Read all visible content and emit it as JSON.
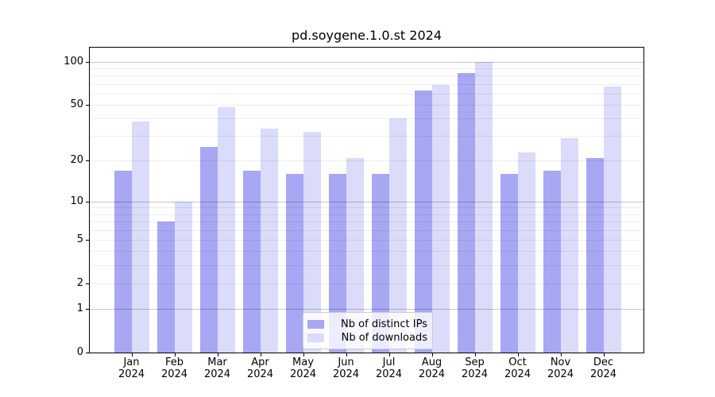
{
  "chart_data": {
    "type": "bar",
    "title": "pd.soygene.1.0.st 2024",
    "categories": [
      "Jan",
      "Feb",
      "Mar",
      "Apr",
      "May",
      "Jun",
      "Jul",
      "Aug",
      "Sep",
      "Oct",
      "Nov",
      "Dec"
    ],
    "category_year": "2024",
    "series": [
      {
        "name": "Nb of distinct IPs",
        "color": "#a7a7f3",
        "values": [
          17,
          7,
          25,
          17,
          16,
          16,
          16,
          63,
          83,
          16,
          17,
          21
        ]
      },
      {
        "name": "Nb of downloads",
        "color": "#dbdbfa",
        "values": [
          38,
          10,
          48,
          34,
          32,
          21,
          40,
          69,
          100,
          23,
          29,
          67
        ]
      }
    ],
    "xlabel": "",
    "ylabel": "",
    "yscale": "log1p",
    "ylim": [
      0,
      125
    ],
    "yticks": [
      100,
      50,
      20,
      10,
      5,
      2,
      1,
      0
    ],
    "major_grid_values": [
      1,
      10,
      100
    ],
    "minor_grid_values": [
      2,
      3,
      4,
      5,
      6,
      7,
      8,
      9,
      20,
      30,
      40,
      50,
      60,
      70,
      80,
      90
    ],
    "grid": true,
    "grid_over_bars": true,
    "legend_position": "lower-center"
  },
  "colors": {
    "background": "#ffffff",
    "axis": "#000000",
    "major_grid": "#c7c7c7",
    "minor_grid": "#ededed"
  }
}
